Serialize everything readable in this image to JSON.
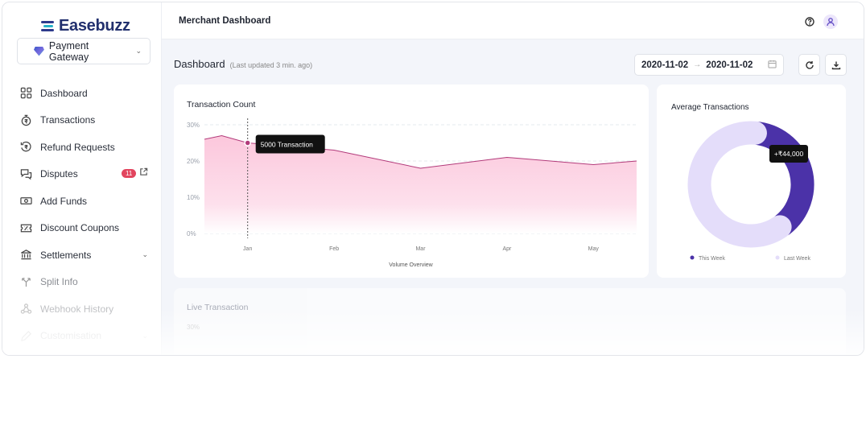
{
  "brand": {
    "name": "Easebuzz"
  },
  "product_select": {
    "label": "Payment Gateway",
    "icon": "gem-icon"
  },
  "sidebar": {
    "items": [
      {
        "label": "Dashboard",
        "icon": "grid-icon"
      },
      {
        "label": "Transactions",
        "icon": "rupee-timer-icon"
      },
      {
        "label": "Refund Requests",
        "icon": "refund-icon"
      },
      {
        "label": "Disputes",
        "icon": "chat-alert-icon",
        "badge": "11",
        "external": true
      },
      {
        "label": "Add Funds",
        "icon": "cash-icon"
      },
      {
        "label": "Discount Coupons",
        "icon": "coupon-icon"
      },
      {
        "label": "Settlements",
        "icon": "bank-icon",
        "expandable": true
      },
      {
        "label": "Split Info",
        "icon": "split-icon"
      },
      {
        "label": "Webhook History",
        "icon": "webhook-icon"
      },
      {
        "label": "Customisation",
        "icon": "pen-icon",
        "expandable": true
      }
    ]
  },
  "topbar": {
    "title": "Merchant Dashboard"
  },
  "dashboard": {
    "title": "Dashboard",
    "last_updated": "(Last updated 3 min. ago)",
    "date_from": "2020-11-02",
    "date_to": "2020-11-02",
    "arrow": "→"
  },
  "colors": {
    "accent": "#5a3fb0",
    "area": "#fcd2e3",
    "line": "#b23a7a",
    "donut_light": "#e4ddfa",
    "donut_dark": "#4b32a8"
  },
  "chart_data": [
    {
      "type": "area",
      "title": "Transaction Count",
      "xlabel": "Volume Overview",
      "ylabel": "",
      "y_ticks": [
        "30%",
        "20%",
        "10%",
        "0%"
      ],
      "ylim": [
        0,
        30
      ],
      "x_ticks": [
        "Jan",
        "Feb",
        "Mar",
        "Apr",
        "May"
      ],
      "x": [
        0.5,
        0.7,
        1.0,
        2.0,
        3.0,
        4.0,
        5.0,
        5.5
      ],
      "values": [
        26,
        27,
        25,
        23,
        18,
        21,
        19,
        20
      ],
      "tooltip": {
        "label": "5000 Transaction",
        "x": 1.0,
        "value": 25
      }
    },
    {
      "type": "pie",
      "title": "Average Transactions",
      "series": [
        {
          "name": "This Week",
          "value": 38,
          "color": "#4b32a8"
        },
        {
          "name": "Last Week",
          "value": 62,
          "color": "#e4ddfa"
        }
      ],
      "tooltip": {
        "label": "+₹44,000"
      }
    }
  ],
  "live": {
    "title": "Live Transaction",
    "y_tick": "30%"
  }
}
